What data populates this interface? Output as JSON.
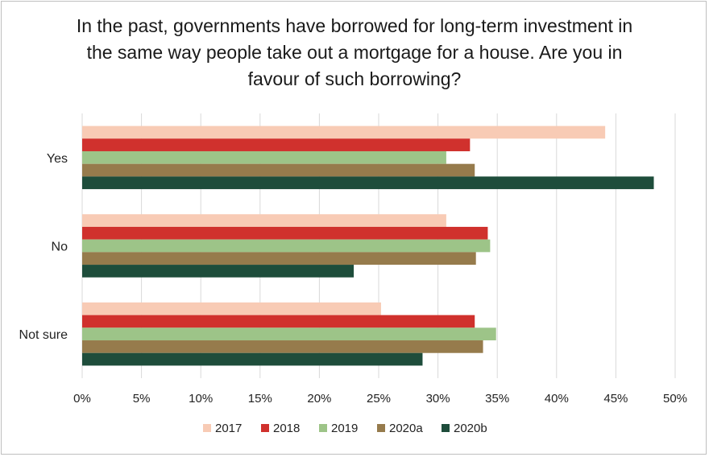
{
  "chart_data": {
    "type": "bar",
    "orientation": "horizontal",
    "title": "In the past, governments have borrowed for long-term investment in the same way people take out a mortgage for a house. Are you in favour of such borrowing?",
    "categories": [
      "Yes",
      "No",
      "Not sure"
    ],
    "series": [
      {
        "name": "2017",
        "color": "#f8cbb5",
        "values": [
          44.1,
          30.7,
          25.2
        ]
      },
      {
        "name": "2018",
        "color": "#d0312d",
        "values": [
          32.7,
          34.2,
          33.1
        ]
      },
      {
        "name": "2019",
        "color": "#9dc488",
        "values": [
          30.7,
          34.4,
          34.9
        ]
      },
      {
        "name": "2020a",
        "color": "#967b4c",
        "values": [
          33.1,
          33.2,
          33.8
        ]
      },
      {
        "name": "2020b",
        "color": "#1e4d3b",
        "values": [
          48.2,
          22.9,
          28.7
        ]
      }
    ],
    "xlim": [
      0,
      50
    ],
    "x_ticks": [
      "0%",
      "5%",
      "10%",
      "15%",
      "20%",
      "25%",
      "30%",
      "35%",
      "40%",
      "45%",
      "50%"
    ],
    "grid": "vertical",
    "legend": "bottom"
  }
}
